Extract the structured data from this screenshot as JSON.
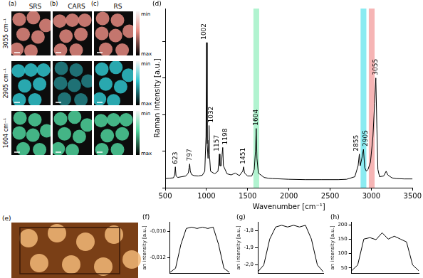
{
  "image_panels": {
    "columns": [
      {
        "label": "(a)",
        "title": "SRS"
      },
      {
        "label": "(b)",
        "title": "CARS"
      },
      {
        "label": "(c)",
        "title": "RS"
      }
    ],
    "rows": [
      {
        "label": "3055 cm⁻¹",
        "color": "#e58a80"
      },
      {
        "label": "2905 cm⁻¹",
        "color": "#2fc4cc"
      },
      {
        "label": "1604 cm⁻¹",
        "color": "#4fd49c"
      }
    ],
    "colorbar": {
      "top": "min",
      "bottom": "max"
    }
  },
  "photo_panel": {
    "label": "(e)"
  },
  "chart_data": [
    {
      "label": "(d)",
      "type": "line",
      "x_label": "Wavenumber [cm⁻¹]",
      "y_label": "Raman intensity [a.u.]",
      "x": [
        500,
        550,
        600,
        615,
        623,
        631,
        650,
        700,
        750,
        780,
        790,
        797,
        804,
        820,
        850,
        900,
        950,
        980,
        995,
        1002,
        1009,
        1020,
        1027,
        1032,
        1037,
        1050,
        1100,
        1140,
        1150,
        1157,
        1164,
        1180,
        1190,
        1198,
        1206,
        1250,
        1300,
        1350,
        1400,
        1440,
        1451,
        1462,
        1500,
        1550,
        1580,
        1595,
        1604,
        1613,
        1630,
        1700,
        1750,
        1800,
        2000,
        2200,
        2400,
        2600,
        2700,
        2800,
        2840,
        2855,
        2866,
        2885,
        2905,
        2920,
        2940,
        2960,
        2990,
        3020,
        3040,
        3055,
        3068,
        3080,
        3100,
        3150,
        3180,
        3200,
        3250,
        3300,
        3400,
        3500
      ],
      "values": [
        0.25,
        0.26,
        0.27,
        0.35,
        0.57,
        0.33,
        0.28,
        0.3,
        0.32,
        0.4,
        0.55,
        0.65,
        0.45,
        0.36,
        0.33,
        0.32,
        0.34,
        0.45,
        1.4,
        3.97,
        1.2,
        0.8,
        1.3,
        1.7,
        0.9,
        0.45,
        0.38,
        0.45,
        0.7,
        0.92,
        0.6,
        0.6,
        0.9,
        1.1,
        0.6,
        0.38,
        0.35,
        0.4,
        0.33,
        0.45,
        0.57,
        0.4,
        0.32,
        0.32,
        0.5,
        1.0,
        1.62,
        0.8,
        0.4,
        0.28,
        0.26,
        0.25,
        0.23,
        0.22,
        0.22,
        0.22,
        0.23,
        0.3,
        0.6,
        0.92,
        0.6,
        0.8,
        1.05,
        0.55,
        0.45,
        0.5,
        0.7,
        1.4,
        2.3,
        3.0,
        1.6,
        0.5,
        0.3,
        0.32,
        0.45,
        0.35,
        0.27,
        0.25,
        0.24,
        0.24
      ],
      "color": "#000000",
      "xlim": [
        500,
        3500
      ],
      "xticks": [
        500,
        1000,
        1500,
        2000,
        2500,
        3000,
        3500
      ],
      "ylim": [
        0,
        4.9
      ],
      "yticks": [
        0,
        1,
        2,
        3,
        4
      ],
      "tick_labels": "x",
      "grid": false,
      "annotations": [
        {
          "text": "623",
          "x": 623,
          "y": 0.57
        },
        {
          "text": "797",
          "x": 797,
          "y": 0.65
        },
        {
          "text": "1002",
          "x": 1002,
          "y": 3.97
        },
        {
          "text": "1032",
          "x": 1032,
          "y": 1.7
        },
        {
          "text": "1157",
          "x": 1157,
          "y": 0.92
        },
        {
          "text": "1198",
          "x": 1198,
          "y": 1.1
        },
        {
          "text": "1451",
          "x": 1451,
          "y": 0.57
        },
        {
          "text": "1604",
          "x": 1604,
          "y": 1.62
        },
        {
          "text": "2855",
          "x": 2855,
          "y": 0.92
        },
        {
          "text": "2905",
          "x": 2905,
          "y": 1.05
        },
        {
          "text": "3055",
          "x": 3055,
          "y": 3.0
        }
      ],
      "highlight_bands": [
        {
          "from": 1570,
          "to": 1640,
          "color": "#9ef0c4"
        },
        {
          "from": 2870,
          "to": 2940,
          "color": "#6ee6ee"
        },
        {
          "from": 2970,
          "to": 3040,
          "color": "#f4a3a3"
        }
      ]
    },
    {
      "label": "(f)",
      "type": "line",
      "y_label": "an intensity [a.u.]",
      "categories": [
        null,
        null,
        null,
        null,
        null,
        null,
        null,
        null,
        null,
        null,
        null,
        null
      ],
      "values": [
        -0.0131,
        -0.0128,
        -0.011,
        -0.0098,
        -0.0097,
        -0.0098,
        -0.0097,
        -0.0098,
        -0.0097,
        -0.011,
        -0.0128,
        -0.0131
      ],
      "color": "#000000",
      "ylim": [
        -0.0132,
        -0.0093
      ],
      "yticks": [
        {
          "value": -0.012,
          "label": "-0,012"
        },
        {
          "value": -0.01,
          "label": "-0,010"
        }
      ],
      "tick_labels": "y",
      "grid": false
    },
    {
      "label": "(g)",
      "type": "line",
      "y_label": "an intensity [a.u.]",
      "categories": [
        null,
        null,
        null,
        null,
        null,
        null,
        null,
        null,
        null,
        null,
        null,
        null
      ],
      "values": [
        -2.04,
        -2.0,
        -1.85,
        -1.78,
        -1.77,
        -1.78,
        -1.77,
        -1.78,
        -1.77,
        -1.85,
        -2.0,
        -2.04
      ],
      "color": "#000000",
      "ylim": [
        -2.05,
        -1.75
      ],
      "yticks": [
        {
          "value": -2.0,
          "label": "-2,0"
        },
        {
          "value": -1.9,
          "label": "-1,9"
        },
        {
          "value": -1.8,
          "label": "-1,8"
        }
      ],
      "tick_labels": "y",
      "grid": false
    },
    {
      "label": "(h)",
      "type": "line",
      "y_label": "an intensity [a.u.]",
      "categories": [
        null,
        null,
        null,
        null,
        null,
        null,
        null,
        null,
        null,
        null,
        null,
        null
      ],
      "values": [
        40,
        60,
        150,
        155,
        148,
        172,
        150,
        160,
        150,
        140,
        60,
        40
      ],
      "color": "#000000",
      "ylim": [
        30,
        210
      ],
      "yticks": [
        50,
        100,
        150,
        200
      ],
      "tick_labels": "y",
      "grid": false
    }
  ]
}
